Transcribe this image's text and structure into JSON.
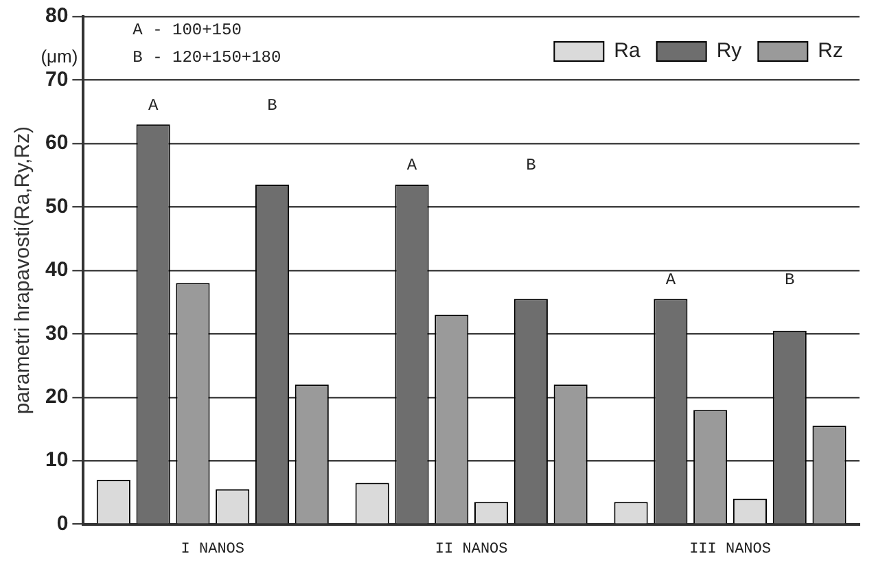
{
  "chart_data": {
    "type": "bar",
    "ylabel": "parametri hrapavosti(Ra,Ry,Rz)",
    "categories": [
      "I NANOS",
      "II NANOS",
      "III NANOS"
    ],
    "series": [
      {
        "name": "Ra",
        "color": "#dadada",
        "values": [
          7,
          6.5,
          3.5
        ]
      },
      {
        "name": "Ry",
        "color": "#6e6e6e",
        "values": [
          63,
          53.5,
          35.5
        ]
      },
      {
        "name": "Rz",
        "color": "#9a9a9a",
        "values": [
          38,
          33,
          18
        ]
      },
      {
        "color": "#dadada",
        "values": [
          5.5,
          3.5,
          4
        ]
      },
      {
        "color": "#6e6e6e",
        "values": [
          53.5,
          35.5,
          30.5
        ]
      },
      {
        "color": "#9a9a9a",
        "values": [
          22,
          22,
          15.5
        ]
      }
    ],
    "ylim": [
      0,
      80
    ],
    "yticks": [
      0,
      10,
      20,
      30,
      40,
      50,
      60,
      70,
      80
    ],
    "grid": "y",
    "legend": "top right",
    "annotations": [
      "(μm)",
      "A - 100+150",
      "B - 120+150+180",
      "A",
      "B",
      "A",
      "B",
      "A",
      "B"
    ]
  }
}
